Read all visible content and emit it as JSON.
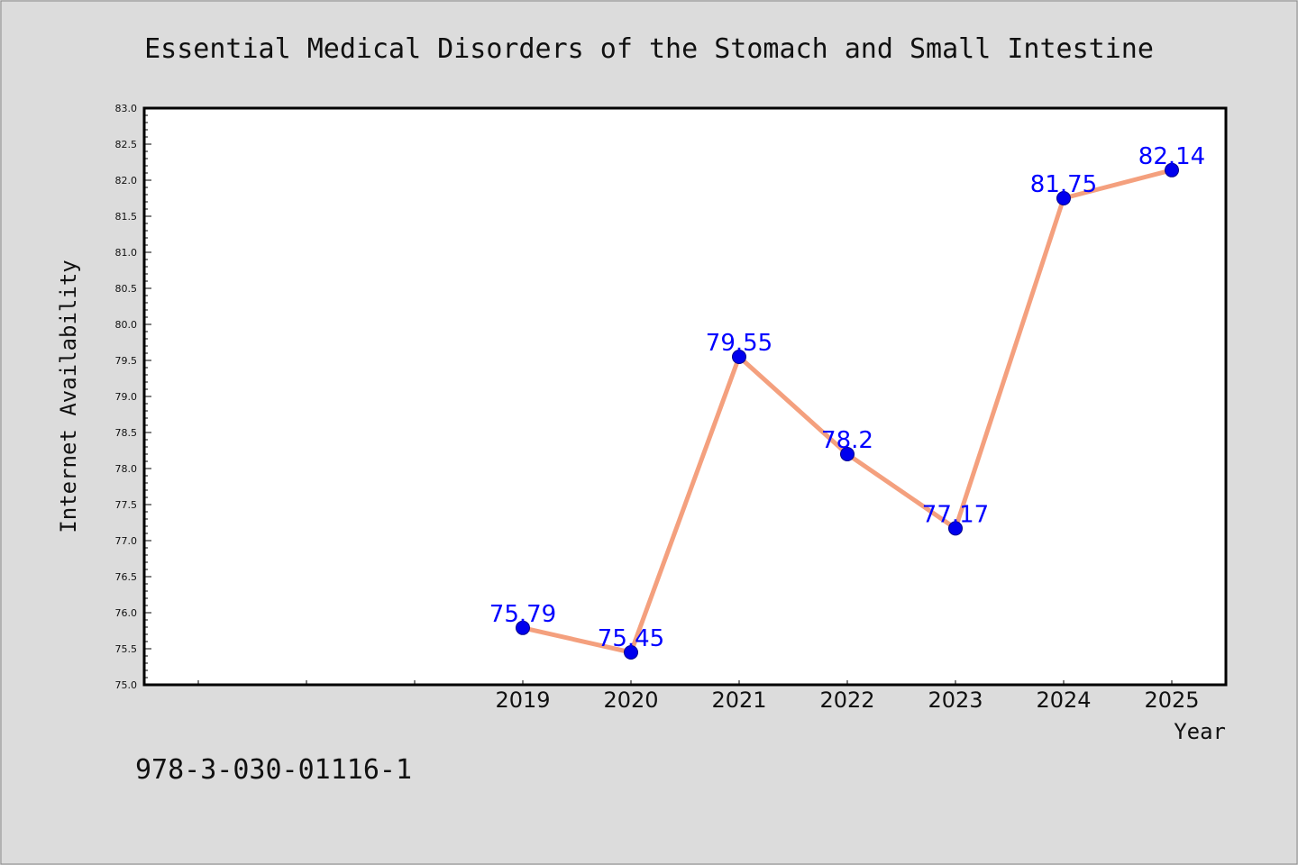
{
  "chart_data": {
    "type": "line",
    "title": "Essential Medical Disorders of the Stomach and Small Intestine",
    "xlabel": "Year",
    "ylabel": "Internet Availability",
    "categories": [
      "2019",
      "2020",
      "2021",
      "2022",
      "2023",
      "2024",
      "2025"
    ],
    "data_labels": [
      "75.79",
      "75.45",
      "79.55",
      "78.2",
      "77.17",
      "81.75",
      "82.14"
    ],
    "series": [
      {
        "values": [
          75.79,
          75.45,
          79.55,
          78.2,
          77.17,
          81.75,
          82.14
        ]
      }
    ],
    "ylim": [
      75.0,
      83.0
    ],
    "yticks": [
      "75.0",
      "75.5",
      "76.0",
      "76.5",
      "77.0",
      "77.5",
      "78.0",
      "78.5",
      "79.0",
      "79.5",
      "80.0",
      "80.5",
      "81.0",
      "81.5",
      "82.0",
      "82.5",
      "83.0"
    ],
    "grid": false,
    "legend": "none",
    "colors": {
      "line": "#f4a07e",
      "marker": "#0000ee",
      "label": "#0000ff",
      "plot_bg": "#ffffff",
      "figure_bg": "#dcdcdc"
    }
  },
  "footer": {
    "isbn": "978-3-030-01116-1"
  }
}
